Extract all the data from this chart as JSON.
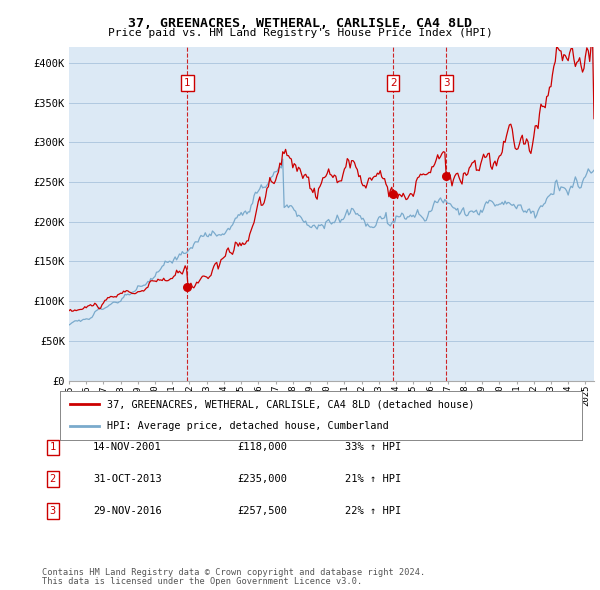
{
  "title": "37, GREENACRES, WETHERAL, CARLISLE, CA4 8LD",
  "subtitle": "Price paid vs. HM Land Registry's House Price Index (HPI)",
  "ylim": [
    0,
    420000
  ],
  "yticks": [
    0,
    50000,
    100000,
    150000,
    200000,
    250000,
    300000,
    350000,
    400000
  ],
  "ytick_labels": [
    "£0",
    "£50K",
    "£100K",
    "£150K",
    "£200K",
    "£250K",
    "£300K",
    "£350K",
    "£400K"
  ],
  "sale_dates_num": [
    2001.88,
    2013.83,
    2016.92
  ],
  "sale_prices": [
    118000,
    235000,
    257500
  ],
  "sale_labels": [
    "1",
    "2",
    "3"
  ],
  "vline_dates": [
    2001.88,
    2013.83,
    2016.92
  ],
  "legend_entries": [
    "37, GREENACRES, WETHERAL, CARLISLE, CA4 8LD (detached house)",
    "HPI: Average price, detached house, Cumberland"
  ],
  "table_rows": [
    [
      "1",
      "14-NOV-2001",
      "£118,000",
      "33% ↑ HPI"
    ],
    [
      "2",
      "31-OCT-2013",
      "£235,000",
      "21% ↑ HPI"
    ],
    [
      "3",
      "29-NOV-2016",
      "£257,500",
      "22% ↑ HPI"
    ]
  ],
  "footer": [
    "Contains HM Land Registry data © Crown copyright and database right 2024.",
    "This data is licensed under the Open Government Licence v3.0."
  ],
  "red_color": "#cc0000",
  "blue_color": "#7aaacc",
  "vline_color": "#cc0000",
  "chart_bg_color": "#dce9f5",
  "background_color": "#ffffff",
  "grid_color": "#b0c8e0"
}
